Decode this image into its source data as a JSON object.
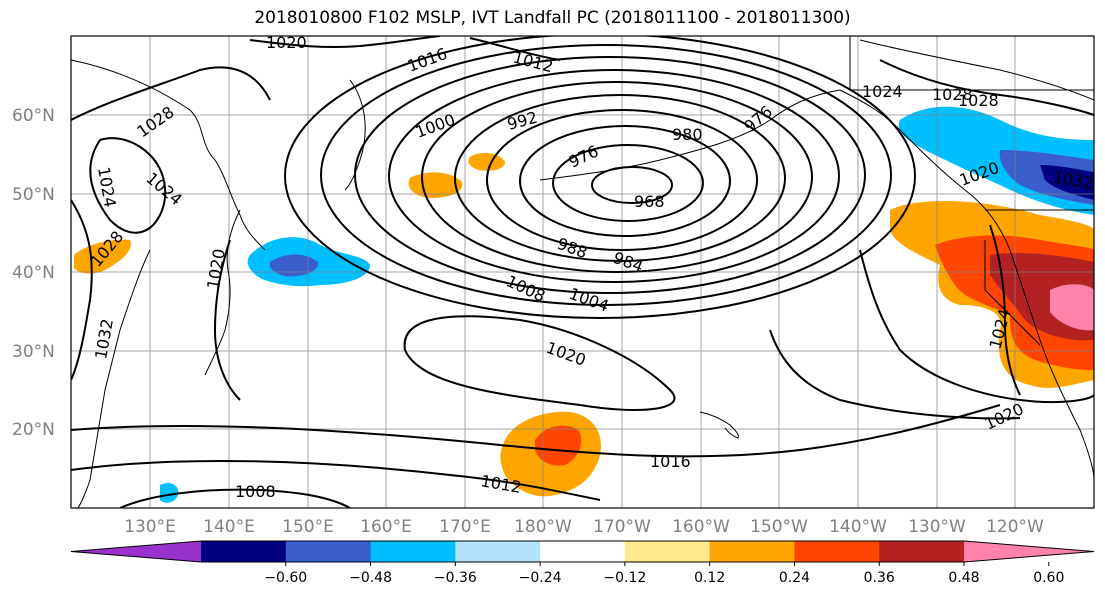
{
  "title": "2018010800 F102 MSLP, IVT Landfall PC (2018011100 - 2018011300)",
  "lat_labels": [
    "60°N",
    "50°N",
    "40°N",
    "30°N",
    "20°N"
  ],
  "lon_labels": [
    "130°E",
    "140°E",
    "150°E",
    "160°E",
    "170°E",
    "180°W",
    "170°W",
    "160°W",
    "150°W",
    "140°W",
    "130°W",
    "120°W"
  ],
  "colorbar": {
    "ticks": [
      "−0.60",
      "−0.48",
      "−0.36",
      "−0.24",
      "−0.12",
      "0.12",
      "0.24",
      "0.36",
      "0.48",
      "0.60"
    ],
    "colors": [
      "#9932cc",
      "#000080",
      "#3a5fcd",
      "#00bfff",
      "#b2e2f8",
      "#ffffff",
      "#ffe98c",
      "#ffa500",
      "#ff4500",
      "#b22222",
      "#ff82ab"
    ]
  },
  "contour_labels": [
    "1020",
    "1016",
    "1012",
    "1028",
    "1024",
    "1024",
    "1024",
    "1028",
    "1028",
    "1000",
    "992",
    "980",
    "976",
    "976",
    "968",
    "988",
    "984",
    "1004",
    "1008",
    "1020",
    "1020",
    "1032",
    "1020",
    "1016",
    "1012",
    "1008",
    "1024",
    "1020",
    "1028",
    "1032"
  ]
}
